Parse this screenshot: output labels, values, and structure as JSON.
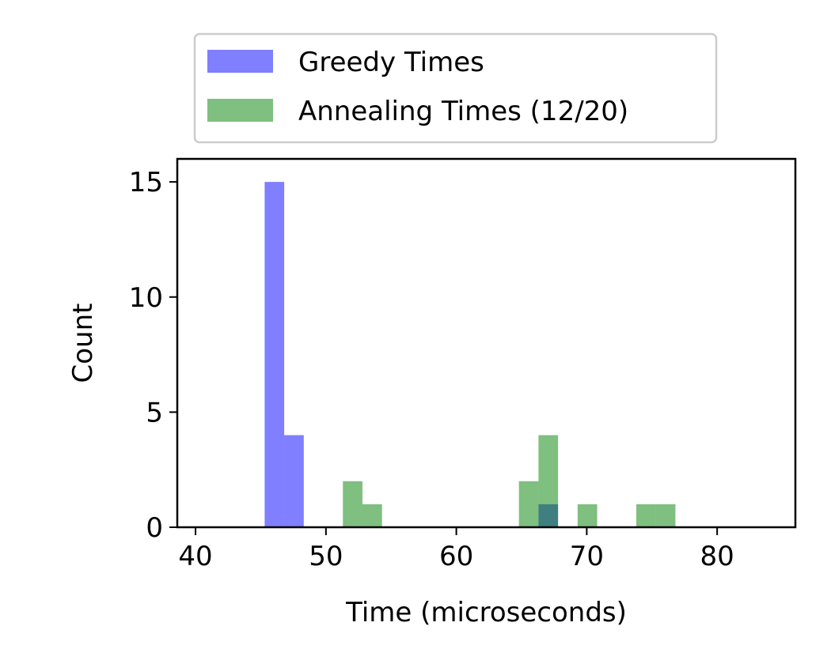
{
  "chart_data": {
    "type": "bar",
    "title": "",
    "xlabel": "Time (microseconds)",
    "ylabel": "Count",
    "xlim": [
      38.6,
      86.0
    ],
    "ylim": [
      0,
      16
    ],
    "xticks": [
      40,
      50,
      60,
      70,
      80
    ],
    "yticks": [
      0,
      5,
      10,
      15
    ],
    "grid": false,
    "legend_position": "above plot, centered",
    "series": [
      {
        "name": "Greedy Times",
        "color": "#0000ff",
        "opacity": 0.5,
        "bins": [
          {
            "x0": 45.3,
            "x1": 46.8,
            "count": 15
          },
          {
            "x0": 46.8,
            "x1": 48.3,
            "count": 4
          },
          {
            "x0": 66.3,
            "x1": 67.8,
            "count": 1
          }
        ]
      },
      {
        "name": "Annealing Times (12/20)",
        "color": "#008000",
        "opacity": 0.5,
        "bins": [
          {
            "x0": 51.3,
            "x1": 52.8,
            "count": 2
          },
          {
            "x0": 52.8,
            "x1": 54.3,
            "count": 1
          },
          {
            "x0": 64.8,
            "x1": 66.3,
            "count": 2
          },
          {
            "x0": 66.3,
            "x1": 67.8,
            "count": 4
          },
          {
            "x0": 69.3,
            "x1": 70.8,
            "count": 1
          },
          {
            "x0": 73.8,
            "x1": 75.3,
            "count": 1
          },
          {
            "x0": 75.3,
            "x1": 76.8,
            "count": 1
          }
        ]
      }
    ]
  }
}
